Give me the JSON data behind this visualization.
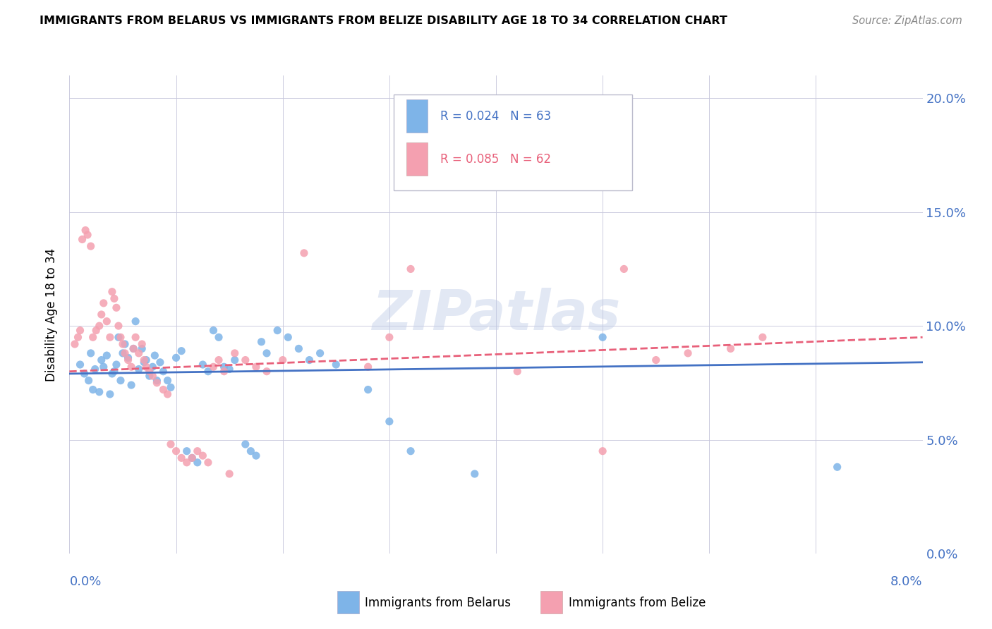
{
  "title": "IMMIGRANTS FROM BELARUS VS IMMIGRANTS FROM BELIZE DISABILITY AGE 18 TO 34 CORRELATION CHART",
  "source": "Source: ZipAtlas.com",
  "ylabel": "Disability Age 18 to 34",
  "xlim": [
    0.0,
    8.0
  ],
  "ylim": [
    0.0,
    21.0
  ],
  "ytick_vals": [
    0.0,
    5.0,
    10.0,
    15.0,
    20.0
  ],
  "xtick_vals": [
    0.0,
    1.0,
    2.0,
    3.0,
    4.0,
    5.0,
    6.0,
    7.0,
    8.0
  ],
  "watermark": "ZIPatlas",
  "legend_r_belarus": "0.024",
  "legend_n_belarus": "63",
  "legend_r_belize": "0.085",
  "legend_n_belize": "62",
  "belarus_color": "#7eb4e8",
  "belize_color": "#f4a0b0",
  "trendline_belarus_color": "#4472c4",
  "trendline_belize_color": "#e8607a",
  "label_color": "#4472c4",
  "belarus_points": [
    [
      0.1,
      8.3
    ],
    [
      0.14,
      7.9
    ],
    [
      0.18,
      7.6
    ],
    [
      0.2,
      8.8
    ],
    [
      0.22,
      7.2
    ],
    [
      0.24,
      8.1
    ],
    [
      0.28,
      7.1
    ],
    [
      0.3,
      8.5
    ],
    [
      0.32,
      8.2
    ],
    [
      0.35,
      8.7
    ],
    [
      0.38,
      7.0
    ],
    [
      0.4,
      7.9
    ],
    [
      0.42,
      8.0
    ],
    [
      0.44,
      8.3
    ],
    [
      0.46,
      9.5
    ],
    [
      0.48,
      7.6
    ],
    [
      0.5,
      8.8
    ],
    [
      0.52,
      9.2
    ],
    [
      0.55,
      8.6
    ],
    [
      0.58,
      7.4
    ],
    [
      0.6,
      9.0
    ],
    [
      0.62,
      10.2
    ],
    [
      0.65,
      8.1
    ],
    [
      0.68,
      9.0
    ],
    [
      0.7,
      8.4
    ],
    [
      0.72,
      8.5
    ],
    [
      0.75,
      7.8
    ],
    [
      0.78,
      8.2
    ],
    [
      0.8,
      8.7
    ],
    [
      0.82,
      7.6
    ],
    [
      0.85,
      8.4
    ],
    [
      0.88,
      8.0
    ],
    [
      0.92,
      7.6
    ],
    [
      0.95,
      7.3
    ],
    [
      1.0,
      8.6
    ],
    [
      1.05,
      8.9
    ],
    [
      1.1,
      4.5
    ],
    [
      1.15,
      4.2
    ],
    [
      1.2,
      4.0
    ],
    [
      1.25,
      8.3
    ],
    [
      1.3,
      8.0
    ],
    [
      1.35,
      9.8
    ],
    [
      1.4,
      9.5
    ],
    [
      1.45,
      8.2
    ],
    [
      1.5,
      8.1
    ],
    [
      1.55,
      8.5
    ],
    [
      1.65,
      4.8
    ],
    [
      1.7,
      4.5
    ],
    [
      1.75,
      4.3
    ],
    [
      1.8,
      9.3
    ],
    [
      1.85,
      8.8
    ],
    [
      1.95,
      9.8
    ],
    [
      2.05,
      9.5
    ],
    [
      2.15,
      9.0
    ],
    [
      2.25,
      8.5
    ],
    [
      2.35,
      8.8
    ],
    [
      2.5,
      8.3
    ],
    [
      2.8,
      7.2
    ],
    [
      3.0,
      5.8
    ],
    [
      3.2,
      4.5
    ],
    [
      3.8,
      3.5
    ],
    [
      5.0,
      9.5
    ],
    [
      7.2,
      3.8
    ]
  ],
  "belize_points": [
    [
      0.05,
      9.2
    ],
    [
      0.08,
      9.5
    ],
    [
      0.1,
      9.8
    ],
    [
      0.12,
      13.8
    ],
    [
      0.15,
      14.2
    ],
    [
      0.17,
      14.0
    ],
    [
      0.2,
      13.5
    ],
    [
      0.22,
      9.5
    ],
    [
      0.25,
      9.8
    ],
    [
      0.28,
      10.0
    ],
    [
      0.3,
      10.5
    ],
    [
      0.32,
      11.0
    ],
    [
      0.35,
      10.2
    ],
    [
      0.38,
      9.5
    ],
    [
      0.4,
      11.5
    ],
    [
      0.42,
      11.2
    ],
    [
      0.44,
      10.8
    ],
    [
      0.46,
      10.0
    ],
    [
      0.48,
      9.5
    ],
    [
      0.5,
      9.2
    ],
    [
      0.52,
      8.8
    ],
    [
      0.55,
      8.5
    ],
    [
      0.58,
      8.2
    ],
    [
      0.6,
      9.0
    ],
    [
      0.62,
      9.5
    ],
    [
      0.65,
      8.8
    ],
    [
      0.68,
      9.2
    ],
    [
      0.7,
      8.5
    ],
    [
      0.72,
      8.2
    ],
    [
      0.75,
      8.0
    ],
    [
      0.78,
      7.8
    ],
    [
      0.82,
      7.5
    ],
    [
      0.88,
      7.2
    ],
    [
      0.92,
      7.0
    ],
    [
      0.95,
      4.8
    ],
    [
      1.0,
      4.5
    ],
    [
      1.05,
      4.2
    ],
    [
      1.1,
      4.0
    ],
    [
      1.15,
      4.2
    ],
    [
      1.2,
      4.5
    ],
    [
      1.25,
      4.3
    ],
    [
      1.3,
      4.0
    ],
    [
      1.35,
      8.2
    ],
    [
      1.4,
      8.5
    ],
    [
      1.45,
      8.0
    ],
    [
      1.5,
      3.5
    ],
    [
      1.55,
      8.8
    ],
    [
      1.65,
      8.5
    ],
    [
      1.75,
      8.2
    ],
    [
      1.85,
      8.0
    ],
    [
      2.0,
      8.5
    ],
    [
      2.2,
      13.2
    ],
    [
      2.8,
      8.2
    ],
    [
      3.0,
      9.5
    ],
    [
      3.2,
      12.5
    ],
    [
      4.2,
      8.0
    ],
    [
      5.0,
      4.5
    ],
    [
      5.2,
      12.5
    ],
    [
      5.5,
      8.5
    ],
    [
      5.8,
      8.8
    ],
    [
      6.2,
      9.0
    ],
    [
      6.5,
      9.5
    ]
  ]
}
